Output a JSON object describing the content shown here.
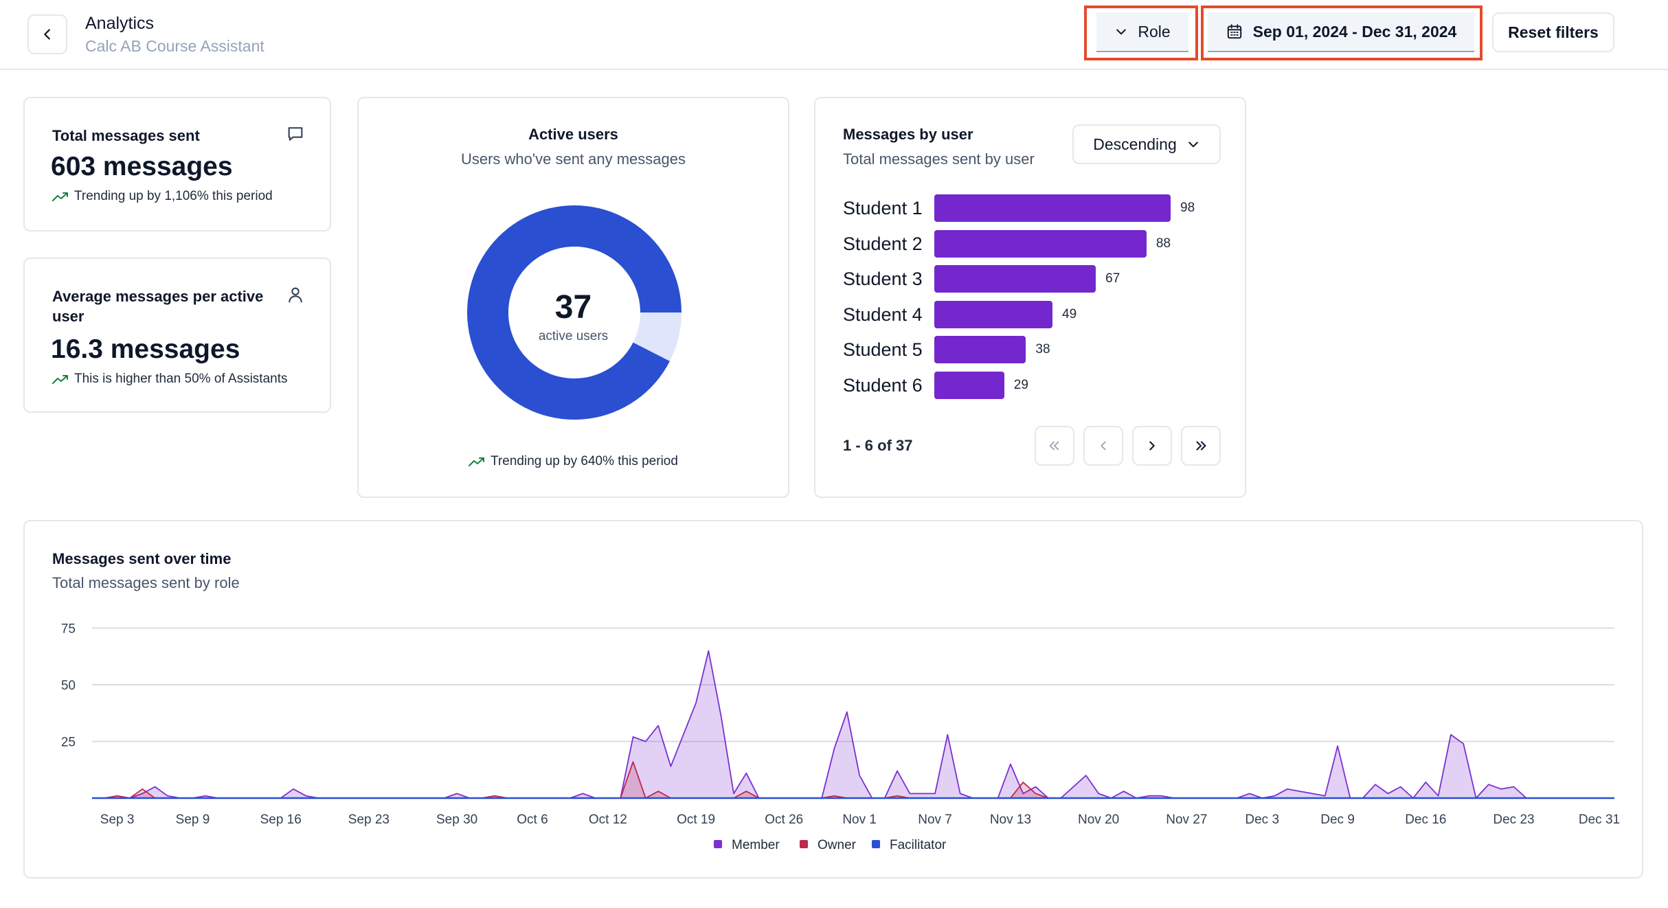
{
  "header": {
    "title": "Analytics",
    "subtitle": "Calc AB Course Assistant",
    "role_label": "Role",
    "date_range": "Sep 01, 2024 - Dec 31, 2024",
    "reset_label": "Reset filters"
  },
  "stats": {
    "total": {
      "title": "Total messages sent",
      "value": "603 messages",
      "trend": "Trending up by 1,106% this period"
    },
    "average": {
      "title": "Average messages per active user",
      "value": "16.3 messages",
      "trend": "This is higher than 50% of Assistants"
    }
  },
  "active_users": {
    "title": "Active users",
    "subtitle": "Users who've sent any messages",
    "value": "37",
    "value_label": "active users",
    "trend": "Trending up by 640% this period",
    "active_fraction": 0.925,
    "colors": {
      "active": "#2b4fd1",
      "remainder": "#dfe6fb"
    }
  },
  "messages_by_user": {
    "title": "Messages by user",
    "subtitle": "Total messages sent by user",
    "sort_label": "Descending",
    "pager": "1 - 6 of 37",
    "users": [
      {
        "name": "Student 1",
        "value": 98,
        "label": "98"
      },
      {
        "name": "Student 2",
        "value": 88,
        "label": "88"
      },
      {
        "name": "Student 3",
        "value": 67,
        "label": "67"
      },
      {
        "name": "Student 4",
        "value": 49,
        "label": "49"
      },
      {
        "name": "Student 5",
        "value": 38,
        "label": "38"
      },
      {
        "name": "Student 6",
        "value": 29,
        "label": "29"
      }
    ],
    "bar_color": "#7327cd"
  },
  "messages_over_time": {
    "title": "Messages sent over time",
    "subtitle": "Total messages sent by role"
  },
  "chart_data": {
    "type": "area",
    "title": "Messages sent over time",
    "subtitle": "Total messages sent by role",
    "xlabel": "",
    "ylabel": "",
    "ylim": [
      0,
      80
    ],
    "yticks": [
      {
        "value": 25,
        "label": "25"
      },
      {
        "value": 50,
        "label": "50"
      },
      {
        "value": 75,
        "label": "75"
      }
    ],
    "x_range": [
      0,
      120
    ],
    "xticks": [
      {
        "day": 2,
        "label": "Sep 3"
      },
      {
        "day": 8,
        "label": "Sep 9"
      },
      {
        "day": 15,
        "label": "Sep 16"
      },
      {
        "day": 22,
        "label": "Sep 23"
      },
      {
        "day": 29,
        "label": "Sep 30"
      },
      {
        "day": 35,
        "label": "Oct 6"
      },
      {
        "day": 41,
        "label": "Oct 12"
      },
      {
        "day": 48,
        "label": "Oct 19"
      },
      {
        "day": 55,
        "label": "Oct 26"
      },
      {
        "day": 61,
        "label": "Nov 1"
      },
      {
        "day": 67,
        "label": "Nov 7"
      },
      {
        "day": 73,
        "label": "Nov 13"
      },
      {
        "day": 80,
        "label": "Nov 20"
      },
      {
        "day": 87,
        "label": "Nov 27"
      },
      {
        "day": 93,
        "label": "Dec 3"
      },
      {
        "day": 99,
        "label": "Dec 9"
      },
      {
        "day": 106,
        "label": "Dec 16"
      },
      {
        "day": 113,
        "label": "Dec 23"
      },
      {
        "day": 121,
        "label": "Dec 31"
      }
    ],
    "series": [
      {
        "name": "Member",
        "color": "#7b2fd3",
        "points": [
          [
            0,
            0
          ],
          [
            1,
            0
          ],
          [
            2,
            1
          ],
          [
            3,
            0
          ],
          [
            4,
            2
          ],
          [
            5,
            5
          ],
          [
            6,
            1
          ],
          [
            7,
            0
          ],
          [
            8,
            0
          ],
          [
            9,
            1
          ],
          [
            10,
            0
          ],
          [
            15,
            0
          ],
          [
            16,
            4
          ],
          [
            17,
            1
          ],
          [
            18,
            0
          ],
          [
            28,
            0
          ],
          [
            29,
            2
          ],
          [
            30,
            0
          ],
          [
            31,
            0
          ],
          [
            32,
            1
          ],
          [
            33,
            0
          ],
          [
            38,
            0
          ],
          [
            39,
            2
          ],
          [
            40,
            0
          ],
          [
            42,
            0
          ],
          [
            43,
            27
          ],
          [
            44,
            25
          ],
          [
            45,
            32
          ],
          [
            46,
            14
          ],
          [
            47,
            28
          ],
          [
            48,
            42
          ],
          [
            49,
            65
          ],
          [
            50,
            36
          ],
          [
            51,
            2
          ],
          [
            52,
            11
          ],
          [
            53,
            0
          ],
          [
            58,
            0
          ],
          [
            59,
            22
          ],
          [
            60,
            38
          ],
          [
            61,
            10
          ],
          [
            62,
            0
          ],
          [
            63,
            0
          ],
          [
            64,
            12
          ],
          [
            65,
            2
          ],
          [
            66,
            2
          ],
          [
            67,
            2
          ],
          [
            68,
            28
          ],
          [
            69,
            2
          ],
          [
            70,
            0
          ],
          [
            72,
            0
          ],
          [
            73,
            15
          ],
          [
            74,
            2
          ],
          [
            75,
            5
          ],
          [
            76,
            0
          ],
          [
            77,
            0
          ],
          [
            78,
            5
          ],
          [
            79,
            10
          ],
          [
            80,
            2
          ],
          [
            81,
            0
          ],
          [
            82,
            3
          ],
          [
            83,
            0
          ],
          [
            84,
            1
          ],
          [
            85,
            1
          ],
          [
            86,
            0
          ],
          [
            91,
            0
          ],
          [
            92,
            2
          ],
          [
            93,
            0
          ],
          [
            94,
            1
          ],
          [
            95,
            4
          ],
          [
            96,
            3
          ],
          [
            97,
            2
          ],
          [
            98,
            1
          ],
          [
            99,
            23
          ],
          [
            100,
            0
          ],
          [
            101,
            0
          ],
          [
            102,
            6
          ],
          [
            103,
            2
          ],
          [
            104,
            5
          ],
          [
            105,
            0
          ],
          [
            106,
            7
          ],
          [
            107,
            1
          ],
          [
            108,
            28
          ],
          [
            109,
            24
          ],
          [
            110,
            0
          ],
          [
            111,
            6
          ],
          [
            112,
            4
          ],
          [
            113,
            5
          ],
          [
            114,
            0
          ],
          [
            121,
            0
          ]
        ]
      },
      {
        "name": "Owner",
        "color": "#c0264e",
        "points": [
          [
            0,
            0
          ],
          [
            1,
            0
          ],
          [
            2,
            1
          ],
          [
            3,
            0
          ],
          [
            4,
            4
          ],
          [
            5,
            0
          ],
          [
            6,
            0
          ],
          [
            28,
            0
          ],
          [
            29,
            0
          ],
          [
            30,
            0
          ],
          [
            31,
            0
          ],
          [
            32,
            1
          ],
          [
            33,
            0
          ],
          [
            42,
            0
          ],
          [
            43,
            16
          ],
          [
            44,
            0
          ],
          [
            45,
            3
          ],
          [
            46,
            0
          ],
          [
            51,
            0
          ],
          [
            52,
            3
          ],
          [
            53,
            0
          ],
          [
            58,
            0
          ],
          [
            59,
            1
          ],
          [
            60,
            0
          ],
          [
            63,
            0
          ],
          [
            64,
            1
          ],
          [
            65,
            0
          ],
          [
            73,
            0
          ],
          [
            74,
            7
          ],
          [
            75,
            2
          ],
          [
            76,
            0
          ],
          [
            121,
            0
          ]
        ]
      },
      {
        "name": "Facilitator",
        "color": "#2b4fd1",
        "points": [
          [
            0,
            0
          ],
          [
            121,
            0
          ]
        ]
      }
    ],
    "legend": [
      "Member",
      "Owner",
      "Facilitator"
    ],
    "legend_position": "bottom-center",
    "grid": true
  }
}
